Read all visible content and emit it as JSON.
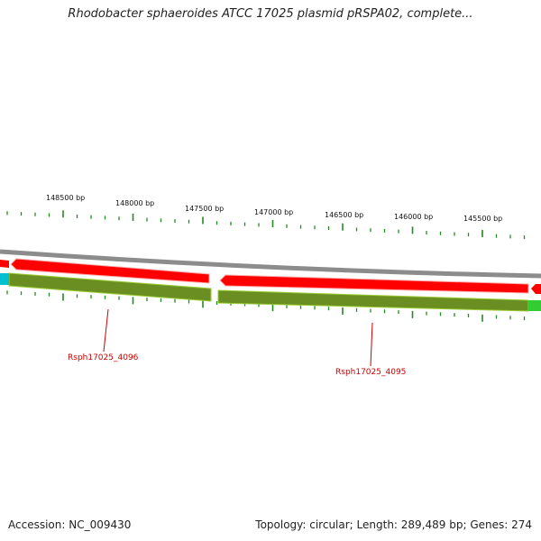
{
  "title": "Rhodobacter sphaeroides ATCC 17025 plasmid pRSPA02, complete...",
  "footer": {
    "accession": "Accession: NC_009430",
    "summary": "Topology: circular; Length: 289,489 bp; Genes: 274"
  },
  "ticks": [
    "148500 bp",
    "148000 bp",
    "147500 bp",
    "147000 bp",
    "146500 bp",
    "146000 bp",
    "145500 bp"
  ],
  "genes": [
    "Rsph17025_4096",
    "Rsph17025_4095"
  ],
  "colors": {
    "backbone": "#8c8c8c",
    "cds": "#ff0000",
    "gene": "#6b8e23",
    "tick": "#228b22",
    "rna": "#00c0d0",
    "other": "#33cc33",
    "gene_label": "#cc0000"
  }
}
